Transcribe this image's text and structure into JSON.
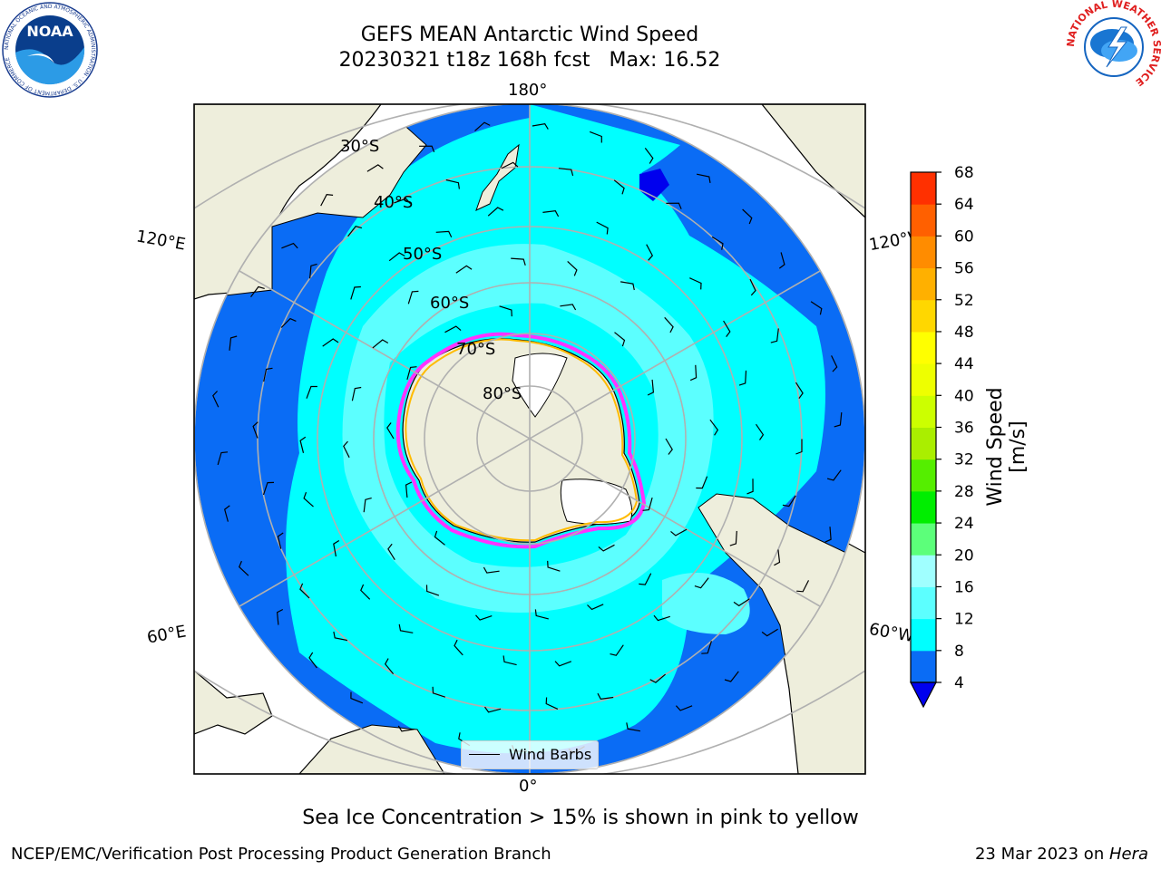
{
  "header": {
    "title": "GEFS MEAN Antarctic Wind Speed",
    "date_run": "20230321 t18z 168h fcst",
    "max_label": "Max: 16.52"
  },
  "logos": {
    "left": "noaa-logo",
    "left_text": "NOAA",
    "left_ring_text": "NATIONAL OCEANIC AND ATMOSPHERIC ADMINISTRATION · U.S. DEPARTMENT OF COMMERCE",
    "right": "nws-logo",
    "right_ring_text": "NATIONAL WEATHER SERVICE"
  },
  "map": {
    "projection": "south-polar-stereographic",
    "longitude_labels": {
      "top": "180°",
      "upper_left": "120°E",
      "upper_right": "120°W",
      "lower_left": "60°E",
      "lower_right": "60°W",
      "bottom": "0°"
    },
    "latitude_labels": [
      "30°S",
      "40°S",
      "50°S",
      "60°S",
      "70°S",
      "80°S"
    ],
    "legend_label": "Wind Barbs",
    "colors": {
      "land": "#eeeedc",
      "ice_sheet": "#ffffff",
      "wind_4_8": "#0a6cf5",
      "wind_8_12": "#00ffff",
      "wind_12_16": "#5cffff",
      "sea_ice_edge": [
        "#ff33ff",
        "#ff9900",
        "#ffff00"
      ]
    }
  },
  "colorbar": {
    "title": "Wind Speed [m/s]",
    "ticks": [
      "4",
      "8",
      "12",
      "16",
      "20",
      "24",
      "28",
      "32",
      "36",
      "40",
      "44",
      "48",
      "52",
      "56",
      "60",
      "64",
      "68"
    ],
    "colors": [
      "#0a6cf5",
      "#00ffff",
      "#5cffff",
      "#a0ffff",
      "#5cff7a",
      "#00ee00",
      "#55ee00",
      "#aaee00",
      "#ccff00",
      "#eeff00",
      "#ffff00",
      "#ffd700",
      "#ffb000",
      "#ff8c00",
      "#ff6000",
      "#ff3000",
      "#ff0000"
    ],
    "extend_color": "#0000ee"
  },
  "footer": {
    "caption": "Sea Ice Concentration > 15% is shown in pink to yellow",
    "left": "NCEP/EMC/Verification Post Processing Product Generation Branch",
    "right_prefix": "23 Mar 2023 on ",
    "right_host": "Hera"
  }
}
